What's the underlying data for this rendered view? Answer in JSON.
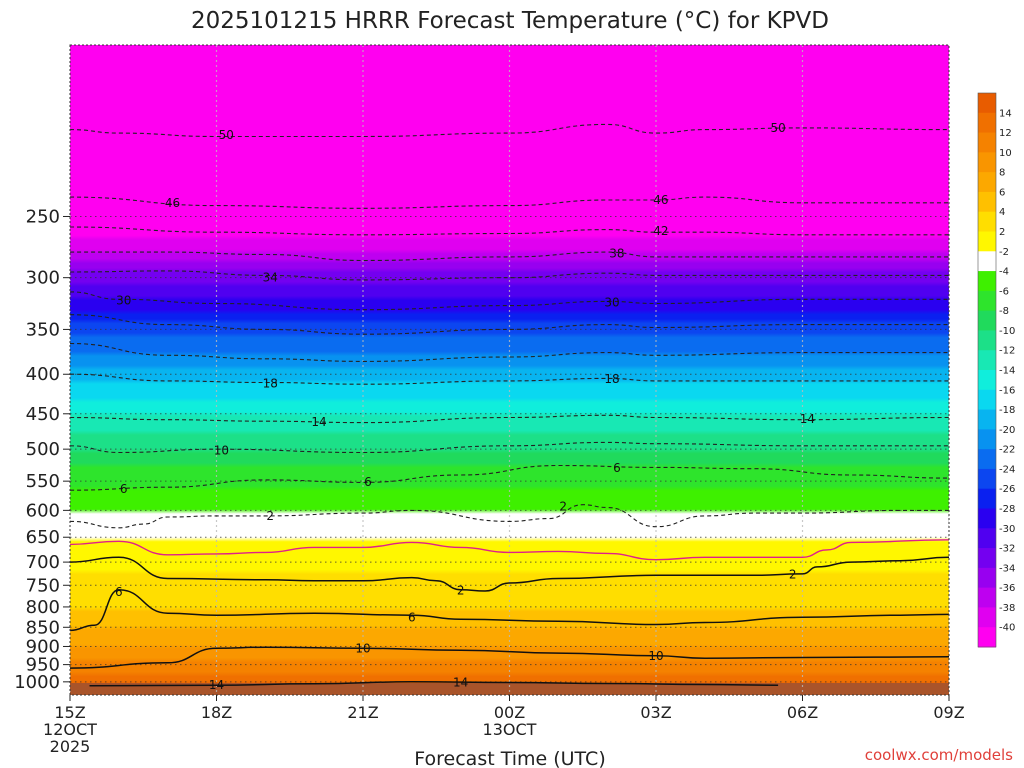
{
  "chart_data": {
    "type": "heatmap",
    "title": "2025101215 HRRR Forecast Temperature (°C) for KPVD",
    "xlabel": "Forecast Time (UTC)",
    "ylabel": "",
    "credit": "coolwx.com/models",
    "x_range": [
      0,
      18
    ],
    "y_axis": {
      "scale": "log",
      "range_hpa": [
        1040,
        150
      ]
    },
    "y_ticks": [
      250,
      300,
      350,
      400,
      450,
      500,
      550,
      600,
      650,
      700,
      750,
      800,
      850,
      900,
      950,
      1000
    ],
    "x_ticks": [
      {
        "hour": 0,
        "lines": [
          "15Z",
          "12OCT",
          "2025"
        ]
      },
      {
        "hour": 3,
        "lines": [
          "18Z"
        ]
      },
      {
        "hour": 6,
        "lines": [
          "21Z"
        ]
      },
      {
        "hour": 9,
        "lines": [
          "00Z",
          "13OCT"
        ]
      },
      {
        "hour": 12,
        "lines": [
          "03Z"
        ]
      },
      {
        "hour": 15,
        "lines": [
          "06Z"
        ]
      },
      {
        "hour": 18,
        "lines": [
          "09Z"
        ]
      }
    ],
    "colorbar": {
      "labels": [
        "14",
        "12",
        "10",
        "8",
        "6",
        "4",
        "2",
        "-2",
        "-4",
        "-6",
        "-8",
        "-10",
        "-12",
        "-14",
        "-16",
        "-18",
        "-20",
        "-22",
        "-24",
        "-26",
        "-28",
        "-30",
        "-32",
        "-34",
        "-36",
        "-38",
        "-40"
      ],
      "colors": [
        "#e85c00",
        "#f07000",
        "#f58200",
        "#f99500",
        "#fca800",
        "#ffc000",
        "#ffde00",
        "#fff700",
        "#ffffff",
        "#3ef000",
        "#2ee42c",
        "#20da5c",
        "#1ce088",
        "#18e8b4",
        "#10eedc",
        "#0ad8f0",
        "#08b4f0",
        "#0892f0",
        "#0a6cf0",
        "#0c46f0",
        "#0a20f0",
        "#2a00f0",
        "#5000f0",
        "#7400f0",
        "#9800f0",
        "#be00f0",
        "#e000f0",
        "#ff00f0"
      ]
    },
    "temperature_profile": [
      {
        "p": 1040,
        "t": 17
      },
      {
        "p": 1020,
        "t": 15
      },
      {
        "p": 1000,
        "t": 14
      },
      {
        "p": 950,
        "t": 10.5
      },
      {
        "p": 900,
        "t": 8
      },
      {
        "p": 850,
        "t": 6
      },
      {
        "p": 800,
        "t": 4
      },
      {
        "p": 750,
        "t": 2.8
      },
      {
        "p": 700,
        "t": 1.2
      },
      {
        "p": 680,
        "t": -1
      },
      {
        "p": 650,
        "t": -2
      },
      {
        "p": 600,
        "t": -4
      },
      {
        "p": 550,
        "t": -6.5
      },
      {
        "p": 500,
        "t": -10
      },
      {
        "p": 450,
        "t": -14
      },
      {
        "p": 400,
        "t": -19
      },
      {
        "p": 350,
        "t": -25
      },
      {
        "p": 300,
        "t": -33
      },
      {
        "p": 250,
        "t": -44
      },
      {
        "p": 200,
        "t": -52
      },
      {
        "p": 150,
        "t": -58
      }
    ],
    "contours": [
      {
        "value": -50,
        "style": "dashed",
        "points": [
          [
            0,
            193
          ],
          [
            1,
            195
          ],
          [
            3,
            197
          ],
          [
            6,
            197
          ],
          [
            9,
            195
          ],
          [
            11,
            190
          ],
          [
            12,
            195
          ],
          [
            13,
            193
          ],
          [
            15,
            192
          ],
          [
            18,
            193
          ]
        ]
      },
      {
        "value": -46,
        "style": "dashed",
        "points": [
          [
            0,
            236
          ],
          [
            3,
            242
          ],
          [
            6,
            244
          ],
          [
            9,
            242
          ],
          [
            11,
            238
          ],
          [
            12,
            238
          ],
          [
            13,
            236
          ],
          [
            15,
            240
          ],
          [
            18,
            240
          ]
        ]
      },
      {
        "value": -42,
        "style": "dashed",
        "points": [
          [
            0,
            258
          ],
          [
            3,
            262
          ],
          [
            6,
            264
          ],
          [
            9,
            263
          ],
          [
            11,
            260
          ],
          [
            12,
            262
          ],
          [
            13,
            262
          ],
          [
            15,
            264
          ],
          [
            18,
            264
          ]
        ]
      },
      {
        "value": -38,
        "style": "dashed",
        "points": [
          [
            0,
            278
          ],
          [
            2,
            278
          ],
          [
            4,
            280
          ],
          [
            6,
            285
          ],
          [
            9,
            282
          ],
          [
            11,
            278
          ],
          [
            12,
            282
          ],
          [
            14,
            282
          ],
          [
            18,
            282
          ]
        ]
      },
      {
        "value": -34,
        "style": "dashed",
        "points": [
          [
            0,
            295
          ],
          [
            2,
            294
          ],
          [
            4,
            298
          ],
          [
            6,
            302
          ],
          [
            9,
            300
          ],
          [
            11,
            296
          ],
          [
            12,
            298
          ],
          [
            14,
            298
          ],
          [
            18,
            298
          ]
        ]
      },
      {
        "value": -30,
        "style": "dashed",
        "points": [
          [
            0,
            313
          ],
          [
            1,
            320
          ],
          [
            3,
            324
          ],
          [
            6,
            330
          ],
          [
            9,
            326
          ],
          [
            11,
            322
          ],
          [
            12,
            324
          ],
          [
            15,
            320
          ],
          [
            18,
            320
          ]
        ]
      },
      {
        "value": -26,
        "style": "dashed",
        "points": [
          [
            0,
            335
          ],
          [
            2,
            345
          ],
          [
            4,
            350
          ],
          [
            6,
            355
          ],
          [
            9,
            350
          ],
          [
            11,
            345
          ],
          [
            12,
            348
          ],
          [
            15,
            345
          ],
          [
            18,
            345
          ]
        ]
      },
      {
        "value": -22,
        "style": "dashed",
        "points": [
          [
            0,
            365
          ],
          [
            2,
            378
          ],
          [
            4,
            382
          ],
          [
            6,
            385
          ],
          [
            9,
            380
          ],
          [
            11,
            375
          ],
          [
            12,
            378
          ],
          [
            15,
            375
          ],
          [
            18,
            375
          ]
        ]
      },
      {
        "value": -18,
        "style": "dashed",
        "points": [
          [
            0,
            400
          ],
          [
            2,
            408
          ],
          [
            4,
            410
          ],
          [
            6,
            412
          ],
          [
            9,
            408
          ],
          [
            11,
            405
          ],
          [
            12,
            408
          ],
          [
            15,
            408
          ],
          [
            18,
            408
          ]
        ]
      },
      {
        "value": -14,
        "style": "dashed",
        "points": [
          [
            0,
            455
          ],
          [
            2,
            458
          ],
          [
            4,
            460
          ],
          [
            6,
            462
          ],
          [
            9,
            455
          ],
          [
            11,
            452
          ],
          [
            12,
            455
          ],
          [
            15,
            458
          ],
          [
            18,
            455
          ]
        ]
      },
      {
        "value": -10,
        "style": "dashed",
        "points": [
          [
            0,
            495
          ],
          [
            1,
            505
          ],
          [
            3,
            500
          ],
          [
            6,
            505
          ],
          [
            9,
            495
          ],
          [
            11,
            490
          ],
          [
            12,
            492
          ],
          [
            15,
            495
          ],
          [
            18,
            495
          ]
        ]
      },
      {
        "value": -6,
        "style": "dashed",
        "points": [
          [
            0,
            565
          ],
          [
            2,
            560
          ],
          [
            4,
            548
          ],
          [
            6,
            552
          ],
          [
            8,
            540
          ],
          [
            10,
            525
          ],
          [
            12,
            528
          ],
          [
            14,
            530
          ],
          [
            16,
            540
          ],
          [
            18,
            545
          ]
        ]
      },
      {
        "value": -2,
        "style": "dashed",
        "points": [
          [
            0,
            620
          ],
          [
            1,
            632
          ],
          [
            1.5,
            625
          ],
          [
            2,
            612
          ],
          [
            3,
            610
          ],
          [
            4,
            610
          ],
          [
            6,
            605
          ],
          [
            7,
            600
          ],
          [
            9,
            620
          ],
          [
            9.8,
            615
          ],
          [
            10.5,
            590
          ],
          [
            11,
            595
          ],
          [
            12,
            630
          ],
          [
            13,
            610
          ],
          [
            14,
            605
          ],
          [
            15,
            605
          ],
          [
            17,
            600
          ],
          [
            18,
            600
          ]
        ]
      },
      {
        "value": 0,
        "style": "magenta",
        "points": [
          [
            0,
            664
          ],
          [
            1,
            658
          ],
          [
            2,
            685
          ],
          [
            3,
            683
          ],
          [
            4,
            680
          ],
          [
            5,
            670
          ],
          [
            6,
            670
          ],
          [
            7,
            660
          ],
          [
            8,
            670
          ],
          [
            9,
            680
          ],
          [
            10,
            678
          ],
          [
            11,
            682
          ],
          [
            12,
            695
          ],
          [
            13,
            690
          ],
          [
            14,
            690
          ],
          [
            15,
            690
          ],
          [
            15.5,
            675
          ],
          [
            16,
            660
          ],
          [
            18,
            655
          ]
        ]
      },
      {
        "value": 2,
        "style": "solid",
        "points": [
          [
            0,
            700
          ],
          [
            1,
            690
          ],
          [
            2,
            735
          ],
          [
            4,
            738
          ],
          [
            5,
            740
          ],
          [
            6,
            740
          ],
          [
            7,
            733
          ],
          [
            7.5,
            740
          ],
          [
            8,
            760
          ],
          [
            8.5,
            763
          ],
          [
            9,
            745
          ],
          [
            10,
            735
          ],
          [
            12,
            728
          ],
          [
            14,
            728
          ],
          [
            15,
            725
          ],
          [
            15.3,
            710
          ],
          [
            16,
            700
          ],
          [
            17,
            697
          ],
          [
            18,
            690
          ]
        ]
      },
      {
        "value": 6,
        "style": "solid",
        "points": [
          [
            0,
            858
          ],
          [
            0.5,
            845
          ],
          [
            1,
            760
          ],
          [
            2,
            815
          ],
          [
            3,
            820
          ],
          [
            5,
            815
          ],
          [
            7,
            820
          ],
          [
            8,
            830
          ],
          [
            10,
            835
          ],
          [
            12,
            843
          ],
          [
            13,
            838
          ],
          [
            15,
            825
          ],
          [
            17,
            820
          ],
          [
            18,
            818
          ]
        ]
      },
      {
        "value": 10,
        "style": "solid",
        "points": [
          [
            0,
            960
          ],
          [
            2,
            945
          ],
          [
            3,
            905
          ],
          [
            4,
            902
          ],
          [
            6,
            905
          ],
          [
            8,
            910
          ],
          [
            10,
            918
          ],
          [
            12,
            925
          ],
          [
            13,
            932
          ],
          [
            15,
            930
          ],
          [
            18,
            928
          ]
        ]
      },
      {
        "value": 14,
        "style": "solid",
        "points": [
          [
            0.4,
            1012
          ],
          [
            3,
            1010
          ],
          [
            5,
            1006
          ],
          [
            7,
            1000
          ],
          [
            9,
            1002
          ],
          [
            11,
            1005
          ],
          [
            13,
            1008
          ],
          [
            14.5,
            1010
          ]
        ]
      }
    ],
    "contour_labels": [
      {
        "text": "50",
        "x": 3.2,
        "p": 196
      },
      {
        "text": "50",
        "x": 14.5,
        "p": 192
      },
      {
        "text": "46",
        "x": 2.1,
        "p": 240
      },
      {
        "text": "46",
        "x": 12.1,
        "p": 238
      },
      {
        "text": "42",
        "x": 12.1,
        "p": 261
      },
      {
        "text": "38",
        "x": 11.2,
        "p": 279
      },
      {
        "text": "34",
        "x": 4.1,
        "p": 300
      },
      {
        "text": "30",
        "x": 1.1,
        "p": 321
      },
      {
        "text": "30",
        "x": 11.1,
        "p": 323
      },
      {
        "text": "18",
        "x": 4.1,
        "p": 411
      },
      {
        "text": "18",
        "x": 11.1,
        "p": 406
      },
      {
        "text": "14",
        "x": 5.1,
        "p": 461
      },
      {
        "text": "14",
        "x": 15.1,
        "p": 457
      },
      {
        "text": "10",
        "x": 3.1,
        "p": 502
      },
      {
        "text": "6",
        "x": 1.1,
        "p": 563
      },
      {
        "text": "6",
        "x": 6.1,
        "p": 551
      },
      {
        "text": "6",
        "x": 11.2,
        "p": 529
      },
      {
        "text": "2",
        "x": 4.1,
        "p": 610
      },
      {
        "text": "2",
        "x": 10.1,
        "p": 593
      },
      {
        "text": "2",
        "x": 8.0,
        "p": 762
      },
      {
        "text": "2",
        "x": 14.8,
        "p": 726
      },
      {
        "text": "6",
        "x": 1.0,
        "p": 765
      },
      {
        "text": "6",
        "x": 7.0,
        "p": 826
      },
      {
        "text": "10",
        "x": 6.0,
        "p": 905
      },
      {
        "text": "10",
        "x": 12.0,
        "p": 926
      },
      {
        "text": "14",
        "x": 3.0,
        "p": 1010
      },
      {
        "text": "14",
        "x": 8.0,
        "p": 1002
      }
    ]
  }
}
